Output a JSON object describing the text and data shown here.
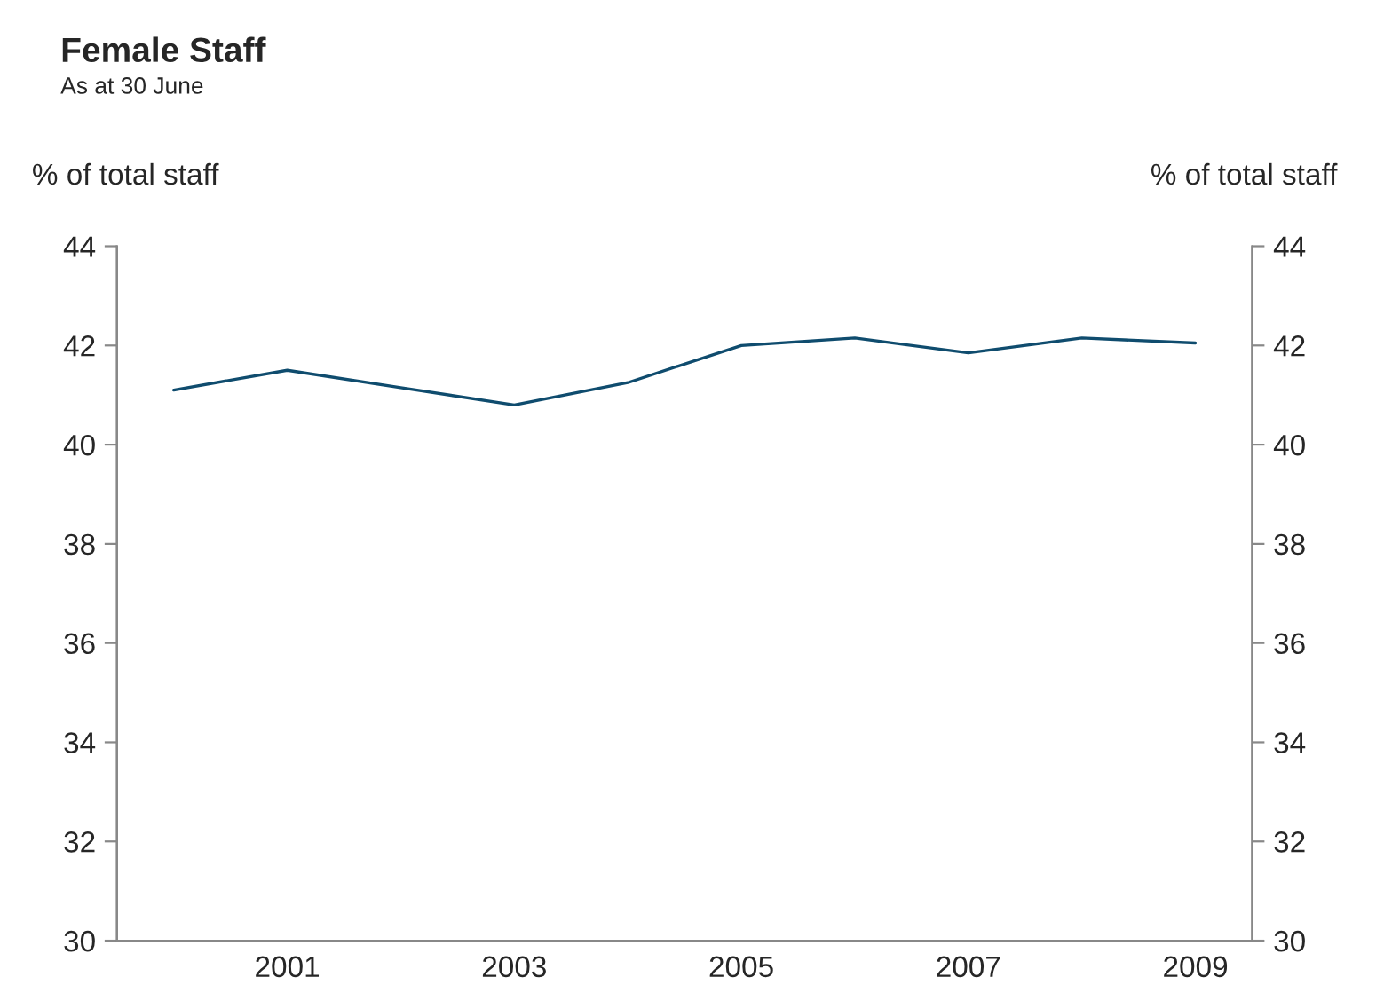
{
  "chart_data": {
    "type": "line",
    "title": "Female Staff",
    "subtitle": "As at 30 June",
    "ylabel": "% of total staff",
    "y2label": "% of total staff",
    "categories": [
      null,
      "2001",
      null,
      "2003",
      null,
      "2005",
      null,
      "2007",
      null,
      "2009"
    ],
    "series": [
      {
        "color": "#0f4c6e",
        "values": [
          41.1,
          41.5,
          41.15,
          40.8,
          41.25,
          42.0,
          42.15,
          41.85,
          42.15,
          42.05
        ]
      }
    ],
    "ylim": [
      30,
      44
    ],
    "yticks": [
      30,
      32,
      34,
      36,
      38,
      40,
      42,
      44
    ],
    "y2lim": [
      30,
      44
    ],
    "y2ticks": [
      30,
      32,
      34,
      36,
      38,
      40,
      42,
      44
    ],
    "grid": false,
    "legend": false,
    "marker": "none",
    "line_style": "solid"
  }
}
